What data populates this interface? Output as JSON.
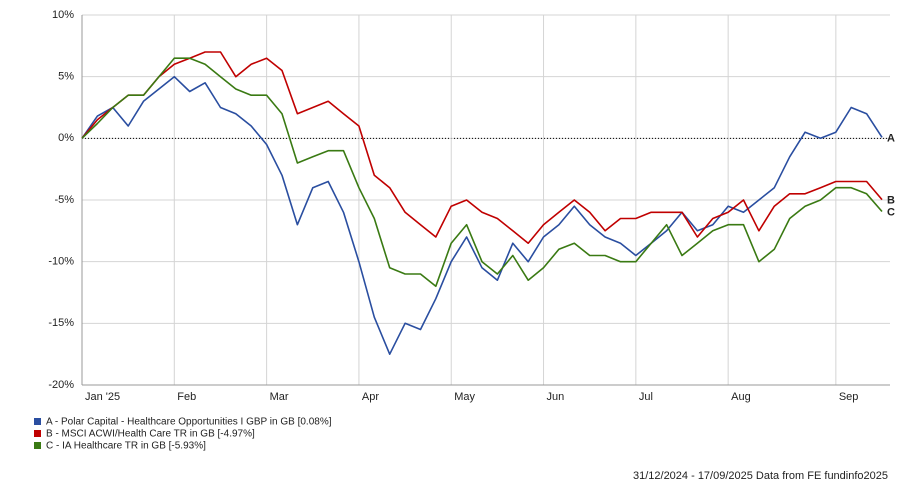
{
  "chart_data": {
    "type": "line",
    "categories": [
      "Jan '25",
      null,
      null,
      null,
      null,
      null,
      "Feb",
      null,
      null,
      null,
      null,
      null,
      "Mar",
      null,
      null,
      null,
      null,
      null,
      "Apr",
      null,
      null,
      null,
      null,
      null,
      "May",
      null,
      null,
      null,
      null,
      null,
      "Jun",
      null,
      null,
      null,
      null,
      null,
      "Jul",
      null,
      null,
      null,
      null,
      null,
      "Aug",
      null,
      null,
      null,
      null,
      null,
      null,
      "Sep",
      null,
      null,
      null
    ],
    "series": [
      {
        "name": "A - Polar Capital - Healthcare Opportunities I GBP in GB [0.08%]",
        "end_label": "A",
        "color": "#2a4ea0",
        "values": [
          0,
          1.8,
          2.5,
          1.0,
          3.0,
          4.0,
          5.0,
          3.8,
          4.5,
          2.5,
          2.0,
          1.0,
          -0.5,
          -3,
          -7,
          -4,
          -3.5,
          -6,
          -10,
          -14.5,
          -17.5,
          -15,
          -15.5,
          -13,
          -10,
          -8,
          -10.5,
          -11.5,
          -8.5,
          -10,
          -8,
          -7,
          -5.5,
          -7,
          -8,
          -8.5,
          -9.5,
          -8.5,
          -7.5,
          -6,
          -7.5,
          -7,
          -5.5,
          -6,
          -5,
          -4,
          -1.5,
          0.5,
          0,
          0.5,
          2.5,
          2,
          0.08
        ]
      },
      {
        "name": "B - MSCI ACWI/Health Care TR in GB [-4.97%]",
        "end_label": "B",
        "color": "#c00000",
        "values": [
          0,
          1.5,
          2.5,
          3.5,
          3.5,
          5,
          6,
          6.5,
          7,
          7,
          5,
          6,
          6.5,
          5.5,
          2,
          2.5,
          3,
          2,
          1,
          -3,
          -4,
          -6,
          -7,
          -8,
          -5.5,
          -5,
          -6,
          -6.5,
          -7.5,
          -8.5,
          -7,
          -6,
          -5,
          -6,
          -7.5,
          -6.5,
          -6.5,
          -6,
          -6,
          -6,
          -8,
          -6.5,
          -6,
          -5,
          -7.5,
          -5.5,
          -4.5,
          -4.5,
          -4,
          -3.5,
          -3.5,
          -3.5,
          -4.97
        ]
      },
      {
        "name": "C - IA Healthcare TR in GB [-5.93%]",
        "end_label": "C",
        "color": "#3a7a13",
        "values": [
          0,
          1.2,
          2.5,
          3.5,
          3.5,
          5,
          6.5,
          6.5,
          6,
          5,
          4,
          3.5,
          3.5,
          2,
          -2,
          -1.5,
          -1,
          -1,
          -4,
          -6.5,
          -10.5,
          -11,
          -11,
          -12,
          -8.5,
          -7,
          -10,
          -11,
          -9.5,
          -11.5,
          -10.5,
          -9,
          -8.5,
          -9.5,
          -9.5,
          -10,
          -10,
          -8.5,
          -7,
          -9.5,
          -8.5,
          -7.5,
          -7,
          -7,
          -10,
          -9,
          -6.5,
          -5.5,
          -5,
          -4,
          -4,
          -4.5,
          -5.93
        ]
      }
    ],
    "ylim": [
      -20,
      10
    ],
    "yticks": [
      {
        "value": -20,
        "label": "-20%"
      },
      {
        "value": -15,
        "label": "-15%"
      },
      {
        "value": -10,
        "label": "-10%"
      },
      {
        "value": -5,
        "label": "-5%"
      },
      {
        "value": 0,
        "label": "0%"
      },
      {
        "value": 5,
        "label": "5%"
      },
      {
        "value": 10,
        "label": "10%"
      }
    ],
    "grid": true,
    "zero_line": true,
    "footer": "31/12/2024 - 17/09/2025 Data from FE fundinfo2025"
  }
}
